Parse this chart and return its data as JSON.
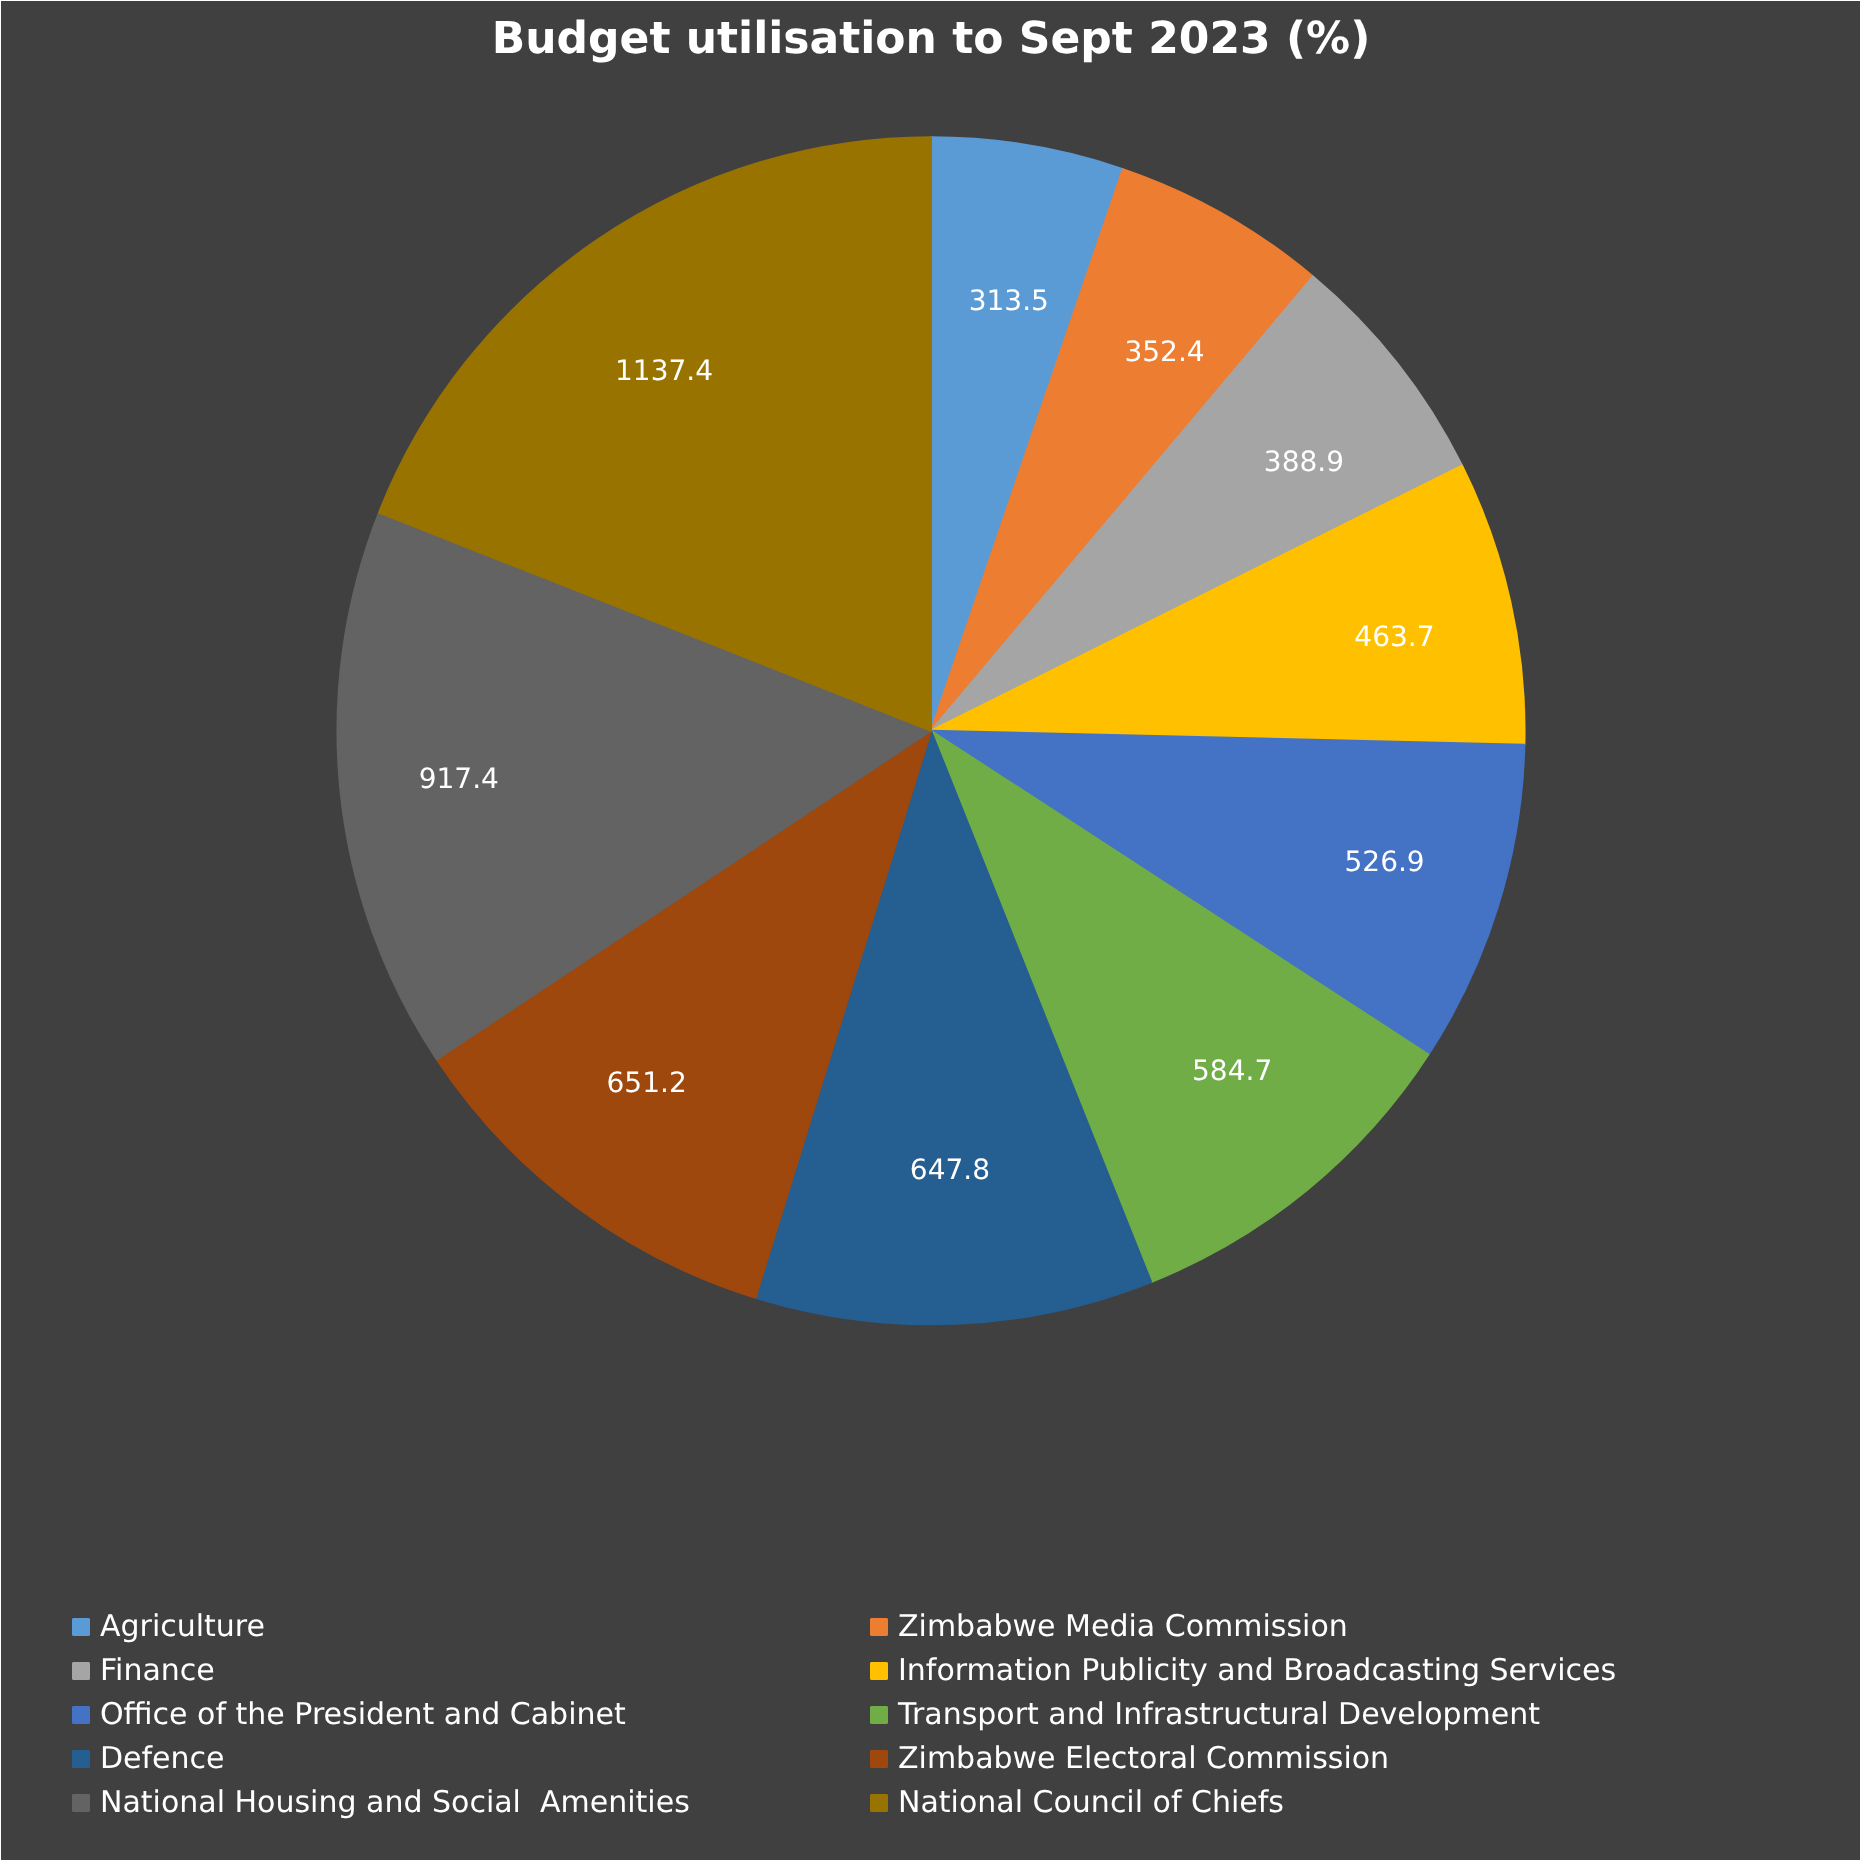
{
  "chart_data": {
    "type": "pie",
    "title": "Budget utilisation to Sept 2023 (%)",
    "categories": [
      "Agriculture",
      "Zimbabwe Media Commission",
      "Finance",
      "Information Publicity and Broadcasting Services",
      "Office of the President and Cabinet",
      "Transport and Infrastructural Development",
      "Defence",
      "Zimbabwe Electoral Commission",
      "National Housing and Social  Amenities",
      "National Council of Chiefs"
    ],
    "values": [
      313.5,
      352.4,
      388.9,
      463.7,
      526.9,
      584.7,
      647.8,
      651.2,
      917.4,
      1137.4
    ],
    "colors": [
      "#5b9bd5",
      "#ed7d31",
      "#a5a5a5",
      "#ffc000",
      "#4472c4",
      "#70ad47",
      "#255e91",
      "#9e480e",
      "#636363",
      "#997300"
    ],
    "data_labels": true,
    "legend": "bottom"
  }
}
